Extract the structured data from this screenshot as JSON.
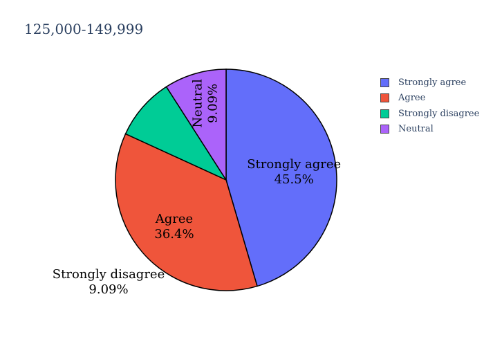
{
  "chart_data": {
    "type": "pie",
    "title": "125,000-149,999",
    "legend_position": "top-right",
    "slices": [
      {
        "label": "Strongly agree",
        "value": 45.5,
        "percent_label": "45.5%",
        "color": "#636efa"
      },
      {
        "label": "Agree",
        "value": 36.4,
        "percent_label": "36.4%",
        "color": "#ef553b"
      },
      {
        "label": "Strongly disagree",
        "value": 9.09,
        "percent_label": "9.09%",
        "color": "#00cc96"
      },
      {
        "label": "Neutral",
        "value": 9.09,
        "percent_label": "9.09%",
        "color": "#ab63fa"
      }
    ],
    "legend": [
      "Strongly agree",
      "Agree",
      "Strongly disagree",
      "Neutral"
    ]
  }
}
